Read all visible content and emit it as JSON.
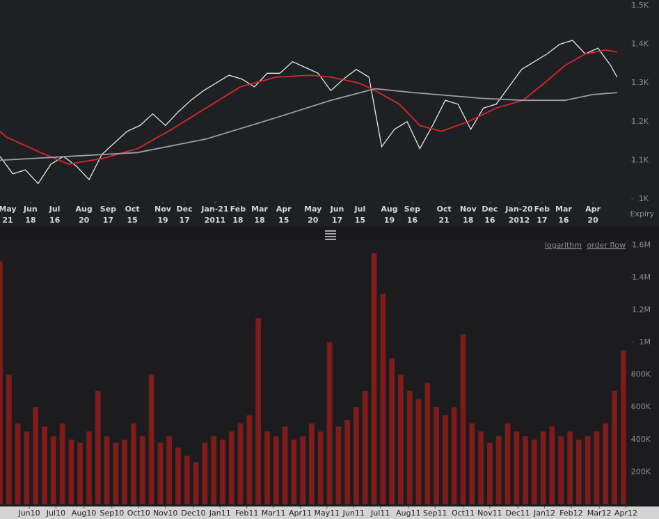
{
  "chart_data": [
    {
      "type": "line",
      "xlim": [
        0,
        495
      ],
      "ylim": [
        1000,
        1500
      ],
      "yticks": [
        {
          "value": 1000,
          "label": "1K"
        },
        {
          "value": 1100,
          "label": "1.1K"
        },
        {
          "value": 1200,
          "label": "1.2K"
        },
        {
          "value": 1300,
          "label": "1.3K"
        },
        {
          "value": 1400,
          "label": "1.4K"
        },
        {
          "value": 1500,
          "label": "1.5K"
        }
      ],
      "xticks": [
        {
          "value": 6,
          "label": "May",
          "sublabel": "21"
        },
        {
          "value": 24,
          "label": "Jun",
          "sublabel": "18"
        },
        {
          "value": 43,
          "label": "Jul",
          "sublabel": "16"
        },
        {
          "value": 66,
          "label": "Aug",
          "sublabel": "20"
        },
        {
          "value": 85,
          "label": "Sep",
          "sublabel": "17"
        },
        {
          "value": 104,
          "label": "Oct",
          "sublabel": "15"
        },
        {
          "value": 128,
          "label": "Nov",
          "sublabel": "19"
        },
        {
          "value": 145,
          "label": "Dec",
          "sublabel": "17"
        },
        {
          "value": 169,
          "label": "Jan-21",
          "sublabel": "2011"
        },
        {
          "value": 187,
          "label": "Feb",
          "sublabel": "18"
        },
        {
          "value": 204,
          "label": "Mar",
          "sublabel": "18"
        },
        {
          "value": 223,
          "label": "Apr",
          "sublabel": "15"
        },
        {
          "value": 246,
          "label": "May",
          "sublabel": "20"
        },
        {
          "value": 265,
          "label": "Jun",
          "sublabel": "17"
        },
        {
          "value": 283,
          "label": "Jul",
          "sublabel": "15"
        },
        {
          "value": 306,
          "label": "Aug",
          "sublabel": "19"
        },
        {
          "value": 324,
          "label": "Sep",
          "sublabel": "16"
        },
        {
          "value": 349,
          "label": "Oct",
          "sublabel": "21"
        },
        {
          "value": 368,
          "label": "Nov",
          "sublabel": "18"
        },
        {
          "value": 385,
          "label": "Dec",
          "sublabel": "16"
        },
        {
          "value": 408,
          "label": "Jan-20",
          "sublabel": "2012"
        },
        {
          "value": 426,
          "label": "Feb",
          "sublabel": "17"
        },
        {
          "value": 443,
          "label": "Mar",
          "sublabel": "16"
        },
        {
          "value": 466,
          "label": "Apr",
          "sublabel": "20"
        }
      ],
      "x_label": "Expiry",
      "series": [
        {
          "color": "#e8e8e8",
          "x": [
            0,
            10,
            20,
            30,
            40,
            50,
            60,
            70,
            80,
            90,
            100,
            110,
            120,
            130,
            140,
            150,
            160,
            170,
            180,
            190,
            200,
            210,
            220,
            230,
            240,
            250,
            260,
            270,
            280,
            290,
            300,
            310,
            320,
            330,
            340,
            350,
            360,
            370,
            380,
            390,
            400,
            410,
            420,
            430,
            440,
            450,
            460,
            470,
            480,
            485
          ],
          "values": [
            1110,
            1065,
            1075,
            1040,
            1090,
            1110,
            1085,
            1050,
            1115,
            1145,
            1175,
            1190,
            1220,
            1190,
            1225,
            1255,
            1280,
            1300,
            1320,
            1310,
            1290,
            1325,
            1325,
            1355,
            1340,
            1325,
            1280,
            1310,
            1335,
            1315,
            1135,
            1180,
            1200,
            1130,
            1190,
            1255,
            1245,
            1180,
            1235,
            1245,
            1290,
            1335,
            1355,
            1375,
            1400,
            1410,
            1375,
            1390,
            1345,
            1315
          ]
        },
        {
          "color": "#d42a2a",
          "x": [
            0,
            5,
            32,
            54,
            81,
            108,
            135,
            162,
            189,
            217,
            244,
            260,
            282,
            295,
            314,
            330,
            347,
            368,
            390,
            411,
            428,
            444,
            460,
            476,
            485
          ],
          "values": [
            1175,
            1160,
            1120,
            1090,
            1105,
            1130,
            1180,
            1235,
            1290,
            1315,
            1320,
            1315,
            1300,
            1280,
            1245,
            1190,
            1175,
            1200,
            1235,
            1255,
            1300,
            1345,
            1375,
            1385,
            1380
          ]
        },
        {
          "color": "#9aa0a6",
          "x": [
            0,
            54,
            108,
            162,
            217,
            260,
            295,
            325,
            379,
            411,
            444,
            466,
            485
          ],
          "values": [
            1100,
            1110,
            1120,
            1155,
            1210,
            1255,
            1285,
            1275,
            1260,
            1255,
            1255,
            1270,
            1275
          ]
        }
      ]
    },
    {
      "type": "bar",
      "xlim": [
        0,
        495
      ],
      "ylim": [
        0,
        1700000
      ],
      "yticks": [
        {
          "value": 200000,
          "label": "200K"
        },
        {
          "value": 400000,
          "label": "400K"
        },
        {
          "value": 600000,
          "label": "600K"
        },
        {
          "value": 800000,
          "label": "800K"
        },
        {
          "value": 1000000,
          "label": "1M"
        },
        {
          "value": 1200000,
          "label": "1.2M"
        },
        {
          "value": 1400000,
          "label": "1.4M"
        },
        {
          "value": 1600000,
          "label": "1.6M"
        }
      ],
      "xticks": [
        {
          "value": 23,
          "label": "Jun10"
        },
        {
          "value": 44,
          "label": "Jul10"
        },
        {
          "value": 66,
          "label": "Aug10"
        },
        {
          "value": 88,
          "label": "Sep10"
        },
        {
          "value": 109,
          "label": "Oct10"
        },
        {
          "value": 130,
          "label": "Nov10"
        },
        {
          "value": 152,
          "label": "Dec10"
        },
        {
          "value": 173,
          "label": "Jan11"
        },
        {
          "value": 194,
          "label": "Feb11"
        },
        {
          "value": 215,
          "label": "Mar11"
        },
        {
          "value": 236,
          "label": "Apr11"
        },
        {
          "value": 257,
          "label": "May11"
        },
        {
          "value": 278,
          "label": "Jun11"
        },
        {
          "value": 299,
          "label": "Jul11"
        },
        {
          "value": 321,
          "label": "Aug11"
        },
        {
          "value": 342,
          "label": "Sep11"
        },
        {
          "value": 364,
          "label": "Oct11"
        },
        {
          "value": 385,
          "label": "Nov11"
        },
        {
          "value": 407,
          "label": "Dec11"
        },
        {
          "value": 428,
          "label": "Jan12"
        },
        {
          "value": 449,
          "label": "Feb12"
        },
        {
          "value": 471,
          "label": "Mar12"
        },
        {
          "value": 492,
          "label": "Apr12"
        }
      ],
      "color": "#7e1c1c",
      "x": [
        0,
        7,
        14,
        21,
        28,
        35,
        42,
        49,
        56,
        63,
        70,
        77,
        84,
        91,
        98,
        105,
        112,
        119,
        126,
        133,
        140,
        147,
        154,
        161,
        168,
        175,
        182,
        189,
        196,
        203,
        210,
        217,
        224,
        231,
        238,
        245,
        252,
        259,
        266,
        273,
        280,
        287,
        294,
        301,
        308,
        315,
        322,
        329,
        336,
        343,
        350,
        357,
        364,
        371,
        378,
        385,
        392,
        399,
        406,
        413,
        420,
        427,
        434,
        441,
        448,
        455,
        462,
        469,
        476,
        483,
        490
      ],
      "values": [
        1500000,
        800000,
        500000,
        450000,
        600000,
        480000,
        420000,
        500000,
        400000,
        380000,
        450000,
        700000,
        420000,
        380000,
        400000,
        500000,
        420000,
        800000,
        380000,
        420000,
        350000,
        300000,
        260000,
        380000,
        420000,
        400000,
        450000,
        500000,
        550000,
        1150000,
        450000,
        420000,
        480000,
        400000,
        420000,
        500000,
        450000,
        1000000,
        480000,
        520000,
        600000,
        700000,
        1550000,
        1300000,
        900000,
        800000,
        700000,
        650000,
        750000,
        600000,
        550000,
        600000,
        1050000,
        500000,
        450000,
        380000,
        420000,
        500000,
        450000,
        420000,
        400000,
        450000,
        480000,
        420000,
        450000,
        400000,
        420000,
        450000,
        500000,
        700000,
        950000
      ]
    }
  ],
  "controls": {
    "logarithm": "logarithm",
    "order_flow": "order flow"
  }
}
